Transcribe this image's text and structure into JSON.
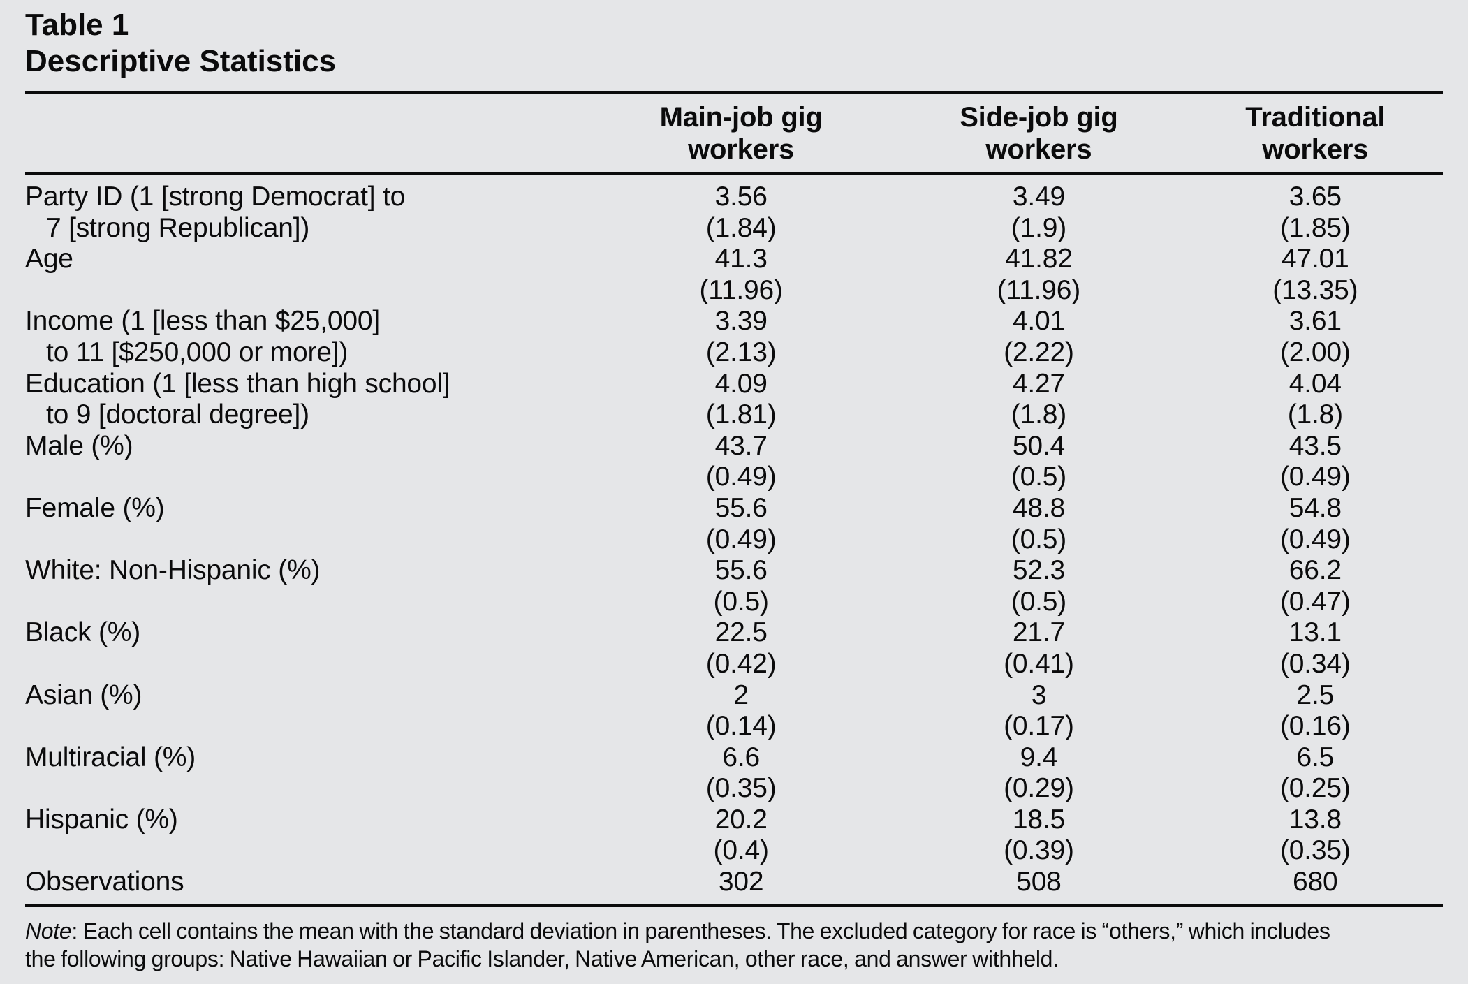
{
  "title": {
    "line1": "Table 1",
    "line2": "Descriptive Statistics"
  },
  "columns": [
    {
      "line1": "Main-job gig",
      "line2": "workers"
    },
    {
      "line1": "Side-job gig",
      "line2": "workers"
    },
    {
      "line1": "Traditional",
      "line2": "workers"
    }
  ],
  "rows": [
    {
      "label": [
        "Party ID (1 [strong Democrat] to",
        "7 [strong Republican])"
      ],
      "means": [
        "3.56",
        "3.49",
        "3.65"
      ],
      "sds": [
        "(1.84)",
        "(1.9)",
        "(1.85)"
      ]
    },
    {
      "label": [
        "Age",
        ""
      ],
      "means": [
        "41.3",
        "41.82",
        "47.01"
      ],
      "sds": [
        "(11.96)",
        "(11.96)",
        "(13.35)"
      ]
    },
    {
      "label": [
        "Income (1 [less than $25,000]",
        "to 11 [$250,000 or more])"
      ],
      "means": [
        "3.39",
        "4.01",
        "3.61"
      ],
      "sds": [
        "(2.13)",
        "(2.22)",
        "(2.00)"
      ]
    },
    {
      "label": [
        "Education (1 [less than high school]",
        "to 9 [doctoral degree])"
      ],
      "means": [
        "4.09",
        "4.27",
        "4.04"
      ],
      "sds": [
        "(1.81)",
        "(1.8)",
        "(1.8)"
      ]
    },
    {
      "label": [
        "Male (%)",
        ""
      ],
      "means": [
        "43.7",
        "50.4",
        "43.5"
      ],
      "sds": [
        "(0.49)",
        "(0.5)",
        "(0.49)"
      ]
    },
    {
      "label": [
        "Female (%)",
        ""
      ],
      "means": [
        "55.6",
        "48.8",
        "54.8"
      ],
      "sds": [
        "(0.49)",
        "(0.5)",
        "(0.49)"
      ]
    },
    {
      "label": [
        "White: Non-Hispanic (%)",
        ""
      ],
      "means": [
        "55.6",
        "52.3",
        "66.2"
      ],
      "sds": [
        "(0.5)",
        "(0.5)",
        "(0.47)"
      ]
    },
    {
      "label": [
        "Black (%)",
        ""
      ],
      "means": [
        "22.5",
        "21.7",
        "13.1"
      ],
      "sds": [
        "(0.42)",
        "(0.41)",
        "(0.34)"
      ]
    },
    {
      "label": [
        "Asian (%)",
        ""
      ],
      "means": [
        "2",
        "3",
        "2.5"
      ],
      "sds": [
        "(0.14)",
        "(0.17)",
        "(0.16)"
      ]
    },
    {
      "label": [
        "Multiracial (%)",
        ""
      ],
      "means": [
        "6.6",
        "9.4",
        "6.5"
      ],
      "sds": [
        "(0.35)",
        "(0.29)",
        "(0.25)"
      ]
    },
    {
      "label": [
        "Hispanic (%)",
        ""
      ],
      "means": [
        "20.2",
        "18.5",
        "13.8"
      ],
      "sds": [
        "(0.4)",
        "(0.39)",
        "(0.35)"
      ]
    },
    {
      "label": [
        "Observations",
        ""
      ],
      "means": [
        "302",
        "508",
        "680"
      ],
      "sds": null
    }
  ],
  "note": {
    "prefix": "Note",
    "line1_rest": ": Each cell contains the mean with the standard deviation in parentheses. The excluded category for race is “others,” which includes",
    "line2": "the following groups: Native Hawaiian or Pacific Islander, Native American, other race, and answer withheld."
  },
  "colors": {
    "background": "#e5e6e8",
    "text": "#0b0b0c"
  }
}
